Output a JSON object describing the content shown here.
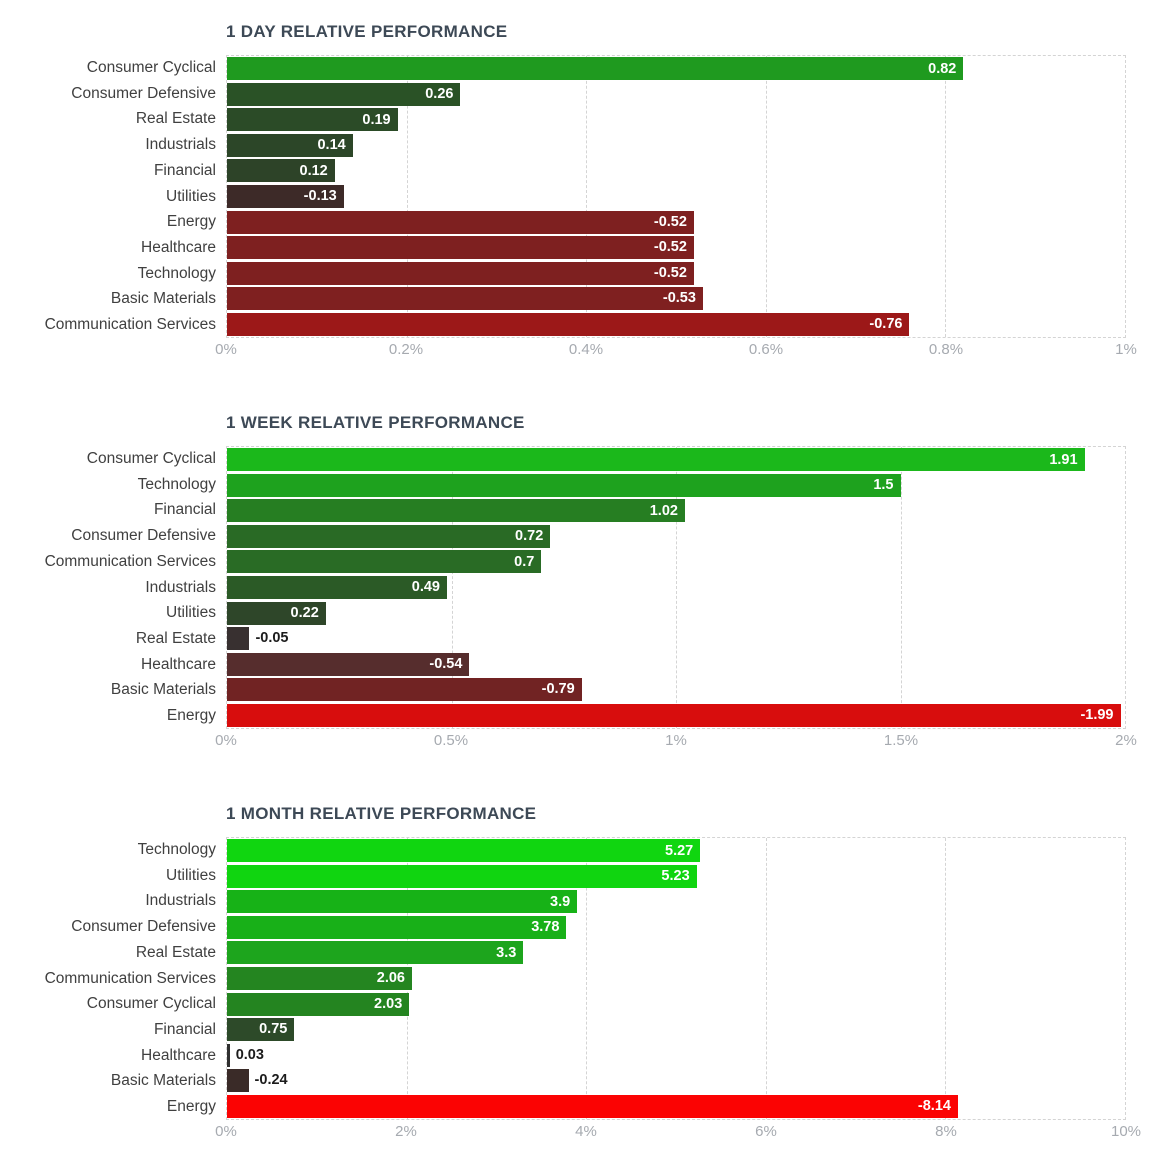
{
  "styles": {
    "background": "#ffffff",
    "title_color": "#3d4956",
    "ylabel_color": "#404040",
    "tick_color": "#a6aab0",
    "grid_color": "#d4d4d4",
    "value_inside_color": "#ffffff",
    "value_outside_color": "#1c1c1c"
  },
  "chart_data": [
    {
      "type": "bar",
      "orientation": "horizontal",
      "title": "1 DAY RELATIVE PERFORMANCE",
      "categories": [
        "Consumer Cyclical",
        "Consumer Defensive",
        "Real Estate",
        "Industrials",
        "Financial",
        "Utilities",
        "Energy",
        "Healthcare",
        "Technology",
        "Basic Materials",
        "Communication Services"
      ],
      "values": [
        0.82,
        0.26,
        0.19,
        0.14,
        0.12,
        -0.13,
        -0.52,
        -0.52,
        -0.52,
        -0.53,
        -0.76
      ],
      "value_labels": [
        "0.82",
        "0.26",
        "0.19",
        "0.14",
        "0.12",
        "-0.13",
        "-0.52",
        "-0.52",
        "-0.52",
        "-0.53",
        "-0.76"
      ],
      "bar_colors": [
        "#1f9a1f",
        "#2a5226",
        "#2b4b27",
        "#2c4628",
        "#2d4328",
        "#3d2a28",
        "#7e2020",
        "#7e2020",
        "#7e2020",
        "#7f2020",
        "#9c1818"
      ],
      "note": "bars drawn by absolute value; color encodes sign and magnitude",
      "xlabel": "",
      "ylabel": "",
      "xlim": [
        0,
        1
      ],
      "x_tick_values": [
        0,
        0.2,
        0.4,
        0.6,
        0.8,
        1
      ],
      "x_tick_labels": [
        "0%",
        "0.2%",
        "0.4%",
        "0.6%",
        "0.8%",
        "1%"
      ],
      "grid": "vertical-dashed",
      "legend": "none"
    },
    {
      "type": "bar",
      "orientation": "horizontal",
      "title": "1 WEEK RELATIVE PERFORMANCE",
      "categories": [
        "Consumer Cyclical",
        "Technology",
        "Financial",
        "Consumer Defensive",
        "Communication Services",
        "Industrials",
        "Utilities",
        "Real Estate",
        "Healthcare",
        "Basic Materials",
        "Energy"
      ],
      "values": [
        1.91,
        1.5,
        1.02,
        0.72,
        0.7,
        0.49,
        0.22,
        -0.05,
        -0.54,
        -0.79,
        -1.99
      ],
      "value_labels": [
        "1.91",
        "1.5",
        "1.02",
        "0.72",
        "0.7",
        "0.49",
        "0.22",
        "-0.05",
        "-0.54",
        "-0.79",
        "-1.99"
      ],
      "bar_colors": [
        "#1bb81b",
        "#1ea21e",
        "#267e22",
        "#296a25",
        "#296b25",
        "#2b5a26",
        "#2e4629",
        "#383030",
        "#562d2d",
        "#712323",
        "#d80d0d"
      ],
      "note": "bars drawn by absolute value; color encodes sign and magnitude",
      "xlabel": "",
      "ylabel": "",
      "xlim": [
        0,
        2
      ],
      "x_tick_values": [
        0,
        0.5,
        1,
        1.5,
        2
      ],
      "x_tick_labels": [
        "0%",
        "0.5%",
        "1%",
        "1.5%",
        "2%"
      ],
      "grid": "vertical-dashed",
      "legend": "none"
    },
    {
      "type": "bar",
      "orientation": "horizontal",
      "title": "1 MONTH RELATIVE PERFORMANCE",
      "categories": [
        "Technology",
        "Utilities",
        "Industrials",
        "Consumer Defensive",
        "Real Estate",
        "Communication Services",
        "Consumer Cyclical",
        "Financial",
        "Healthcare",
        "Basic Materials",
        "Energy"
      ],
      "values": [
        5.27,
        5.23,
        3.9,
        3.78,
        3.3,
        2.06,
        2.03,
        0.75,
        0.03,
        -0.24,
        -8.14
      ],
      "value_labels": [
        "5.27",
        "5.23",
        "3.9",
        "3.78",
        "3.3",
        "2.06",
        "2.03",
        "0.75",
        "0.03",
        "-0.24",
        "-8.14"
      ],
      "bar_colors": [
        "#10d610",
        "#10d510",
        "#17b217",
        "#18b018",
        "#1da51d",
        "#248520",
        "#248420",
        "#2d4a29",
        "#303030",
        "#3a2b28",
        "#fb0303"
      ],
      "note": "bars drawn by absolute value; color encodes sign and magnitude",
      "xlabel": "",
      "ylabel": "",
      "xlim": [
        0,
        10
      ],
      "x_tick_values": [
        0,
        2,
        4,
        6,
        8,
        10
      ],
      "x_tick_labels": [
        "0%",
        "2%",
        "4%",
        "6%",
        "8%",
        "10%"
      ],
      "grid": "vertical-dashed",
      "legend": "none"
    }
  ]
}
